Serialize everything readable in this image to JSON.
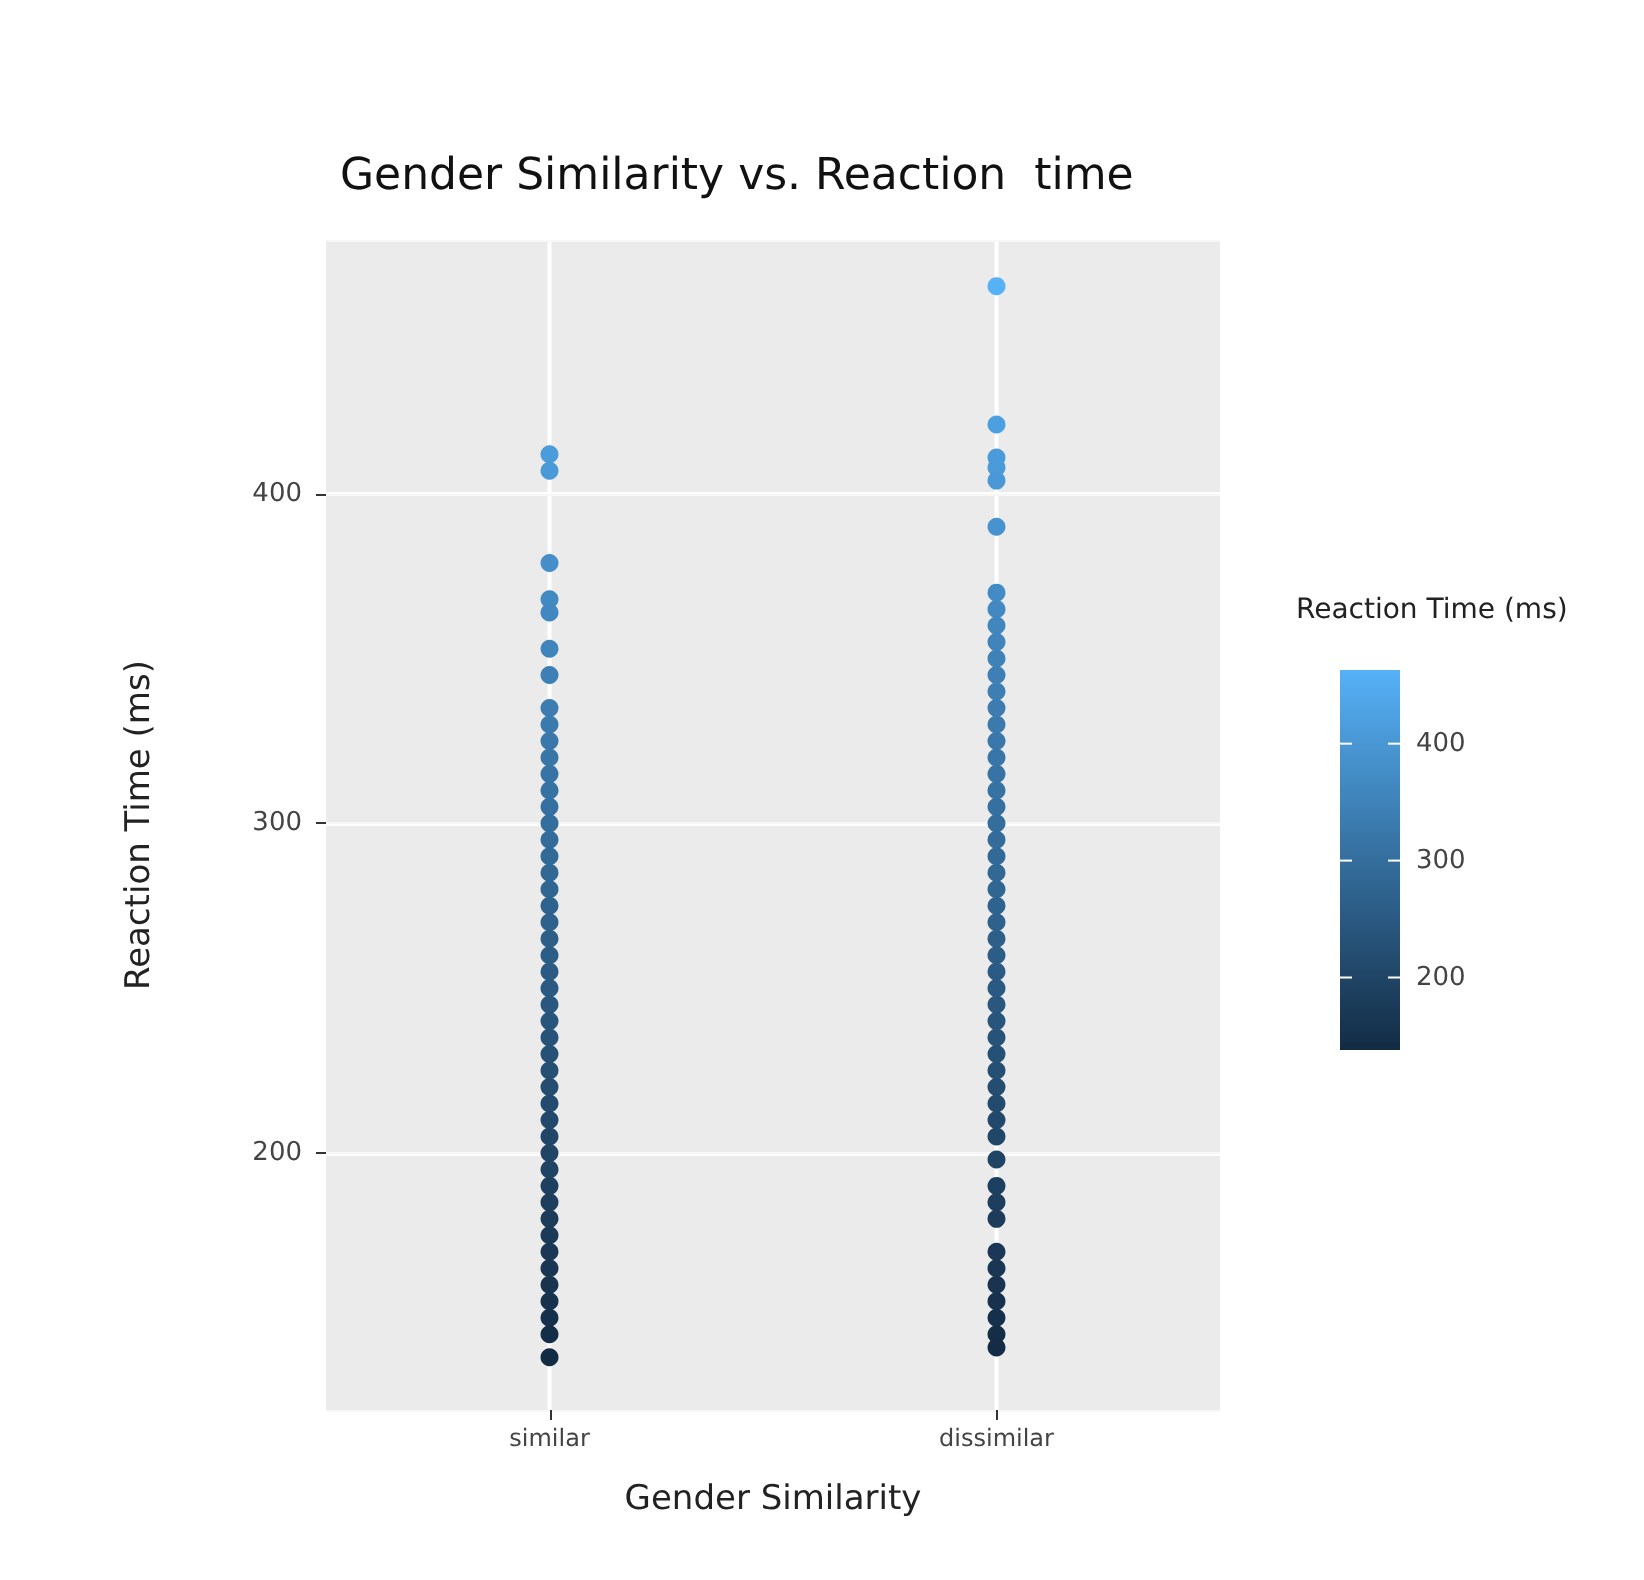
{
  "chart_data": {
    "type": "scatter",
    "title": "Gender Similarity vs. Reaction  time",
    "xlabel": "Gender Similarity",
    "ylabel": "Reaction Time (ms)",
    "clabel": "Reaction Time (ms)",
    "categories": [
      "similar",
      "dissimilar"
    ],
    "series": [
      {
        "x": [
          "similar",
          "similar",
          "similar",
          "similar",
          "similar",
          "similar",
          "similar",
          "similar",
          "similar",
          "similar",
          "similar",
          "similar",
          "similar",
          "similar",
          "similar",
          "similar",
          "similar",
          "similar",
          "similar",
          "similar",
          "similar",
          "similar",
          "similar",
          "similar",
          "similar",
          "similar",
          "similar",
          "similar",
          "similar",
          "similar",
          "similar",
          "similar",
          "similar",
          "similar",
          "similar",
          "similar",
          "similar",
          "similar",
          "similar",
          "similar",
          "similar",
          "similar",
          "similar",
          "similar",
          "similar",
          "similar",
          "similar"
        ],
        "values": [
          412,
          407,
          379,
          368,
          364,
          353,
          345,
          335,
          330,
          325,
          320,
          315,
          310,
          305,
          300,
          295,
          290,
          285,
          280,
          275,
          270,
          265,
          260,
          255,
          250,
          245,
          240,
          235,
          230,
          225,
          220,
          215,
          210,
          205,
          200,
          195,
          190,
          185,
          180,
          175,
          170,
          165,
          160,
          155,
          150,
          145,
          138
        ],
        "colors": [
          "#4b9cdb",
          "#4a9ad8",
          "#458ec9",
          "#428ac2",
          "#4288c0",
          "#3f84ba",
          "#3e80b6",
          "#3c7cb0",
          "#3b7aad",
          "#3a78ab",
          "#3976a8",
          "#3774a5",
          "#3672a2",
          "#3570a0",
          "#346e9d",
          "#336c9a",
          "#326a97",
          "#316894",
          "#306692",
          "#2f638f",
          "#2e618c",
          "#2d5f89",
          "#2c5d87",
          "#2b5b84",
          "#2a5981",
          "#29577e",
          "#28557c",
          "#275379",
          "#265176",
          "#254f73",
          "#244d70",
          "#234b6e",
          "#22496b",
          "#214768",
          "#204565",
          "#1f4363",
          "#1e4060",
          "#1d3e5d",
          "#1c3c5a",
          "#1b3a58",
          "#1a3855",
          "#193652",
          "#18344f",
          "#16324c",
          "#15304a",
          "#142e47",
          "#132b43"
        ]
      },
      {
        "x": [
          "dissimilar",
          "dissimilar",
          "dissimilar",
          "dissimilar",
          "dissimilar",
          "dissimilar",
          "dissimilar",
          "dissimilar",
          "dissimilar",
          "dissimilar",
          "dissimilar",
          "dissimilar",
          "dissimilar",
          "dissimilar",
          "dissimilar",
          "dissimilar",
          "dissimilar",
          "dissimilar",
          "dissimilar",
          "dissimilar",
          "dissimilar",
          "dissimilar",
          "dissimilar",
          "dissimilar",
          "dissimilar",
          "dissimilar",
          "dissimilar",
          "dissimilar",
          "dissimilar",
          "dissimilar",
          "dissimilar",
          "dissimilar",
          "dissimilar",
          "dissimilar",
          "dissimilar",
          "dissimilar",
          "dissimilar",
          "dissimilar",
          "dissimilar",
          "dissimilar",
          "dissimilar",
          "dissimilar",
          "dissimilar",
          "dissimilar",
          "dissimilar",
          "dissimilar",
          "dissimilar",
          "dissimilar",
          "dissimilar",
          "dissimilar",
          "dissimilar"
        ],
        "values": [
          463,
          421,
          411,
          408,
          404,
          390,
          370,
          365,
          360,
          355,
          350,
          345,
          340,
          335,
          330,
          325,
          320,
          315,
          310,
          305,
          300,
          295,
          290,
          285,
          280,
          275,
          270,
          265,
          260,
          255,
          250,
          245,
          240,
          235,
          230,
          225,
          220,
          215,
          210,
          205,
          198,
          190,
          185,
          180,
          170,
          165,
          160,
          155,
          150,
          145,
          141
        ],
        "colors": [
          "#56b1f7",
          "#4da0e0",
          "#4b9bda",
          "#4b9ad9",
          "#4a99d6",
          "#4793cf",
          "#438bc4",
          "#4289c1",
          "#4187be",
          "#4084bb",
          "#3f82b8",
          "#3e80b6",
          "#3d7eb3",
          "#3c7cb0",
          "#3b7aad",
          "#3a78ab",
          "#3976a8",
          "#3774a5",
          "#3672a2",
          "#3570a0",
          "#346e9d",
          "#336c9a",
          "#326a97",
          "#316894",
          "#306692",
          "#2f638f",
          "#2e618c",
          "#2d5f89",
          "#2c5d87",
          "#2b5b84",
          "#2a5981",
          "#29577e",
          "#28557c",
          "#275379",
          "#265176",
          "#254f73",
          "#244d70",
          "#234b6e",
          "#22496b",
          "#214768",
          "#1f4464",
          "#1e4060",
          "#1d3e5d",
          "#1c3c5a",
          "#1a3855",
          "#193652",
          "#18344f",
          "#16324c",
          "#15304a",
          "#142e47",
          "#142c45"
        ]
      }
    ],
    "ylim": [
      122,
      477
    ],
    "yticks": [
      200,
      300,
      400
    ],
    "clim": [
      138,
      463
    ],
    "cticks": [
      200,
      300,
      400
    ],
    "grid": true,
    "marker": "circle"
  }
}
